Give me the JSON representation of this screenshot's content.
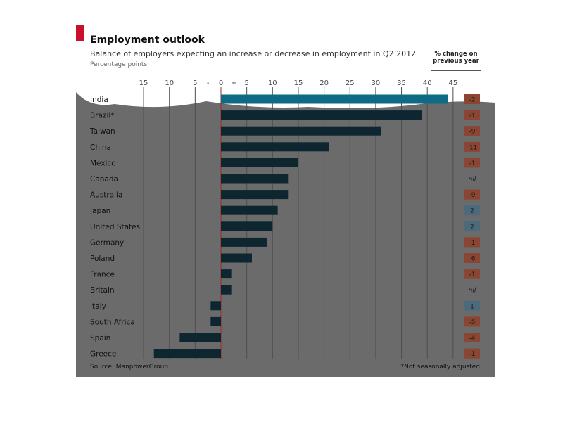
{
  "header": {
    "title": "Employment outlook",
    "subtitle": "Balance of employers expecting an increase or decrease in employment in Q2 2012",
    "units": "Percentage points",
    "change_column_label": "% change on previous year"
  },
  "footer": {
    "source": "Source: ManpowerGroup",
    "footnote": "*Not seasonally adjusted"
  },
  "colors": {
    "card_background": "#6b6b6b",
    "bar": "#0e2630",
    "bar_highlight": "#0f6b85",
    "negative_change": "#8a4533",
    "positive_change": "#4d6a7c",
    "brand_red": "#c8102e",
    "zero_line": "#a02a2a"
  },
  "chart_data": {
    "type": "bar",
    "orientation": "horizontal",
    "categories": [
      "India",
      "Brazil*",
      "Taiwan",
      "China",
      "Mexico",
      "Canada",
      "Australia",
      "Japan",
      "United States",
      "Germany",
      "Poland",
      "France",
      "Britain",
      "Italy",
      "South Africa",
      "Spain",
      "Greece"
    ],
    "values": [
      44,
      39,
      31,
      21,
      15,
      13,
      13,
      11,
      10,
      9,
      6,
      2,
      2,
      -2,
      -2,
      -8,
      -13
    ],
    "xlim": [
      -15,
      45
    ],
    "ticks": [
      {
        "value": -15,
        "label": "15"
      },
      {
        "value": -10,
        "label": "10"
      },
      {
        "value": -5,
        "label": "5"
      },
      {
        "value": -2.5,
        "label": "-"
      },
      {
        "value": 0,
        "label": "0"
      },
      {
        "value": 2.5,
        "label": "+"
      },
      {
        "value": 5,
        "label": "5"
      },
      {
        "value": 10,
        "label": "10"
      },
      {
        "value": 15,
        "label": "15"
      },
      {
        "value": 20,
        "label": "20"
      },
      {
        "value": 25,
        "label": "25"
      },
      {
        "value": 30,
        "label": "30"
      },
      {
        "value": 35,
        "label": "35"
      },
      {
        "value": 40,
        "label": "40"
      },
      {
        "value": 45,
        "label": "45"
      }
    ],
    "gridlines": [
      -15,
      -10,
      -5,
      0,
      5,
      10,
      15,
      20,
      25,
      30,
      35,
      40,
      45
    ],
    "grid": true,
    "change_on_previous_year": [
      "-2",
      "-1",
      "-9",
      "-11",
      "-1",
      "nil",
      "-9",
      "2",
      "2",
      "-1",
      "-6",
      "-1",
      "nil",
      "1",
      "-5",
      "-4",
      "-1"
    ]
  }
}
